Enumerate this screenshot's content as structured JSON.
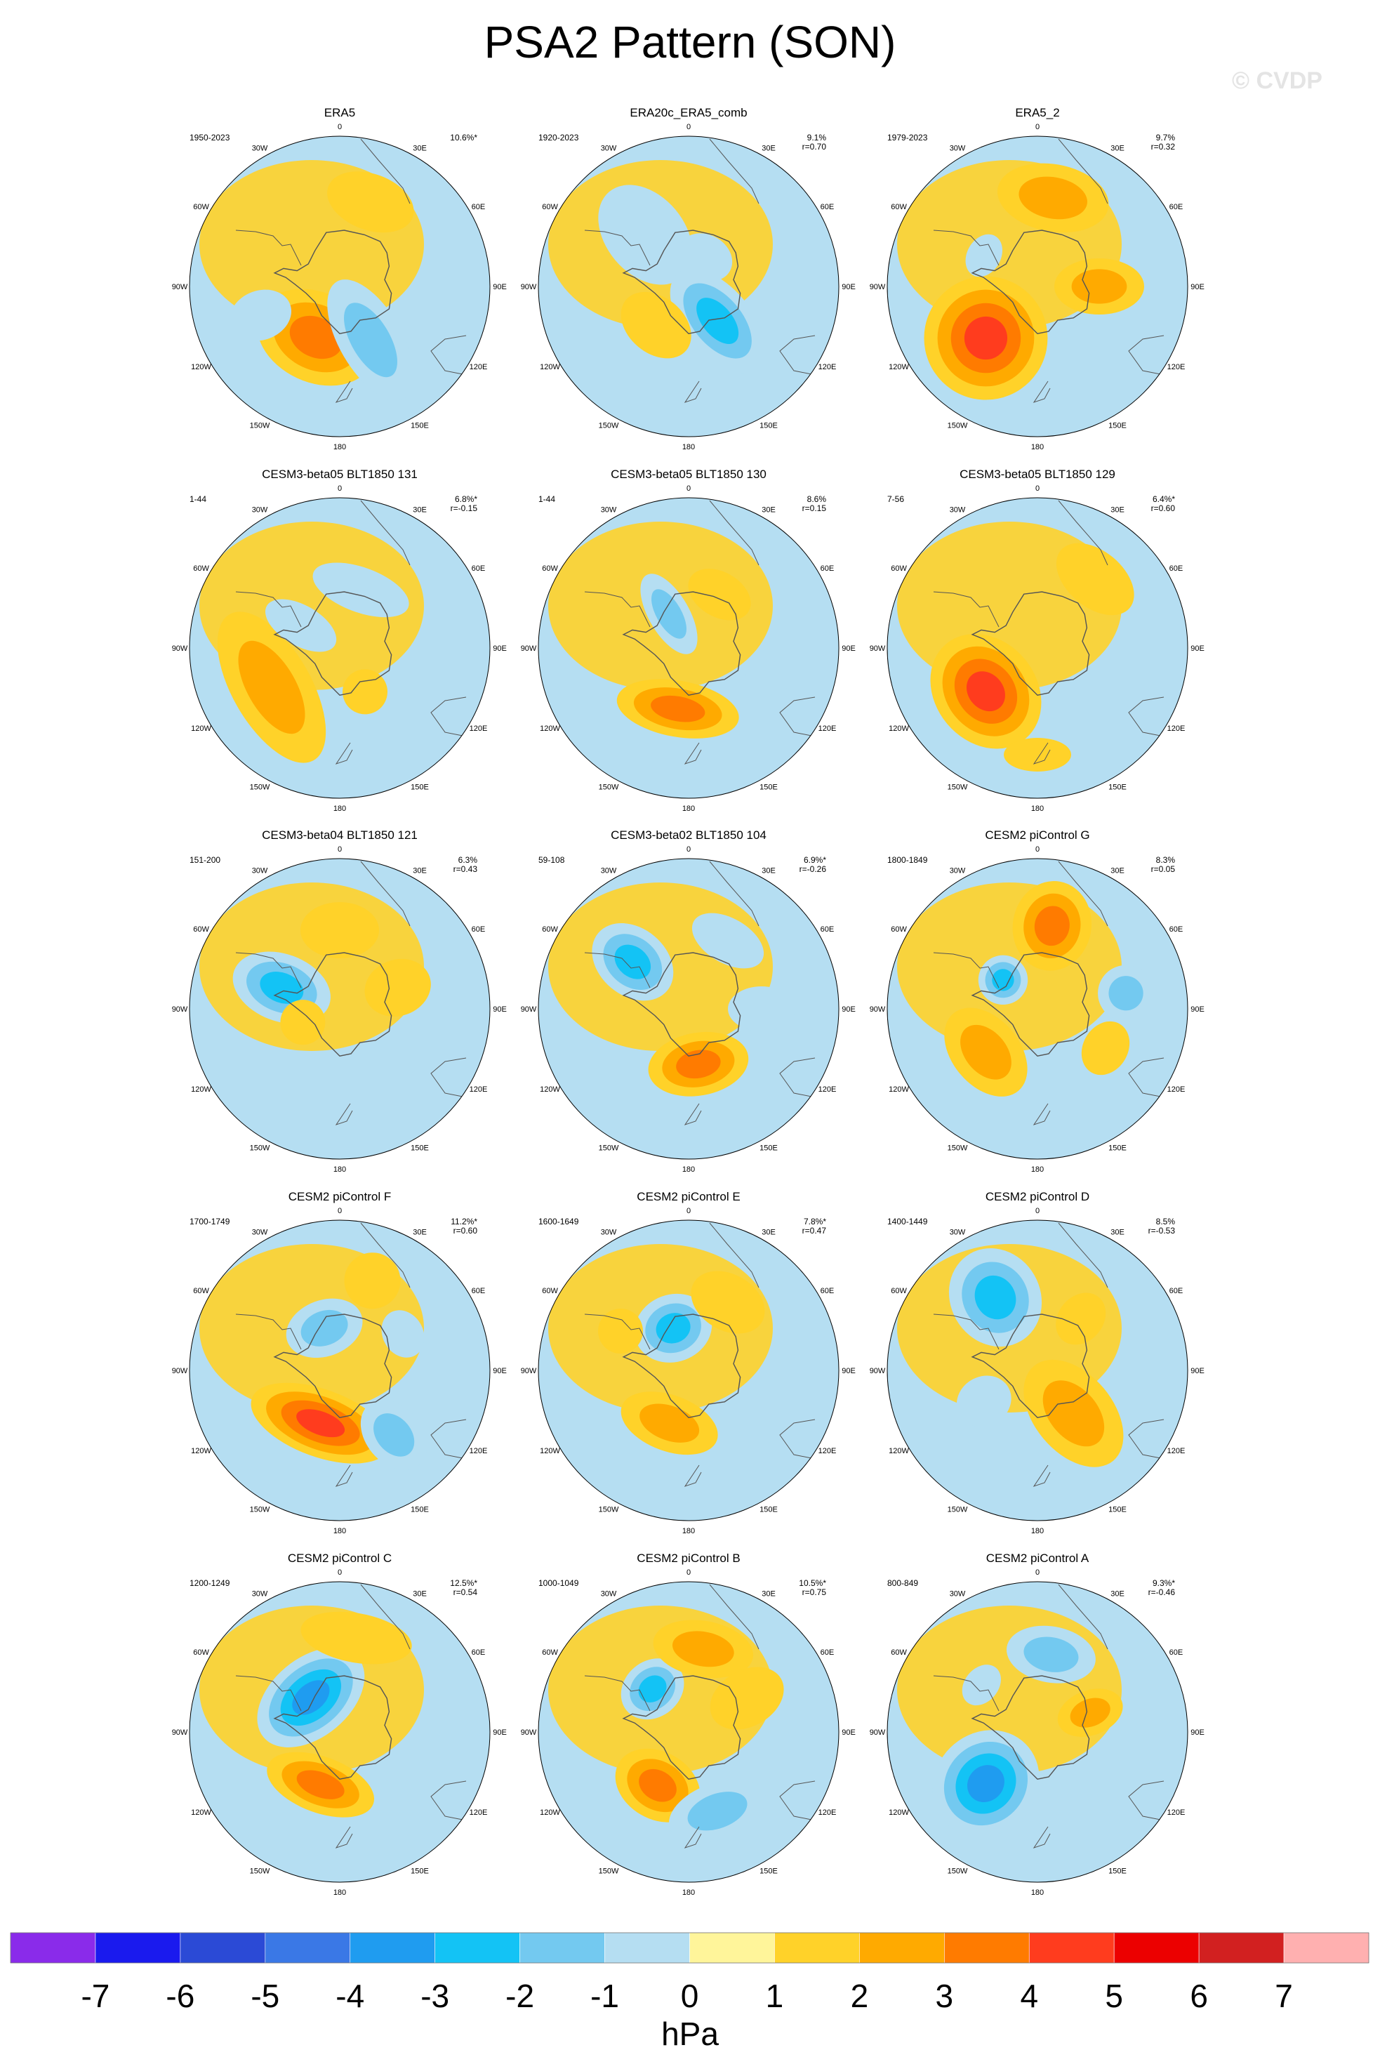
{
  "title": "PSA2 Pattern (SON)",
  "watermark": "© CVDP",
  "longitude_labels": [
    "0",
    "30E",
    "60E",
    "90E",
    "120E",
    "150E",
    "180",
    "150W",
    "120W",
    "90W",
    "60W",
    "30W"
  ],
  "panels": [
    {
      "title": "ERA5",
      "period": "1950-2023",
      "pct": "10.6%*",
      "r": ""
    },
    {
      "title": "ERA20c_ERA5_comb",
      "period": "1920-2023",
      "pct": "9.1%",
      "r": "r=0.70"
    },
    {
      "title": "ERA5_2",
      "period": "1979-2023",
      "pct": "9.7%",
      "r": "r=0.32"
    },
    {
      "title": "CESM3-beta05 BLT1850 131",
      "period": "1-44",
      "pct": "6.8%*",
      "r": "r=-0.15"
    },
    {
      "title": "CESM3-beta05 BLT1850 130",
      "period": "1-44",
      "pct": "8.6%",
      "r": "r=0.15"
    },
    {
      "title": "CESM3-beta05 BLT1850 129",
      "period": "7-56",
      "pct": "6.4%*",
      "r": "r=0.60"
    },
    {
      "title": "CESM3-beta04 BLT1850 121",
      "period": "151-200",
      "pct": "6.3%",
      "r": "r=0.43"
    },
    {
      "title": "CESM3-beta02 BLT1850 104",
      "period": "59-108",
      "pct": "6.9%*",
      "r": "r=-0.26"
    },
    {
      "title": "CESM2 piControl G",
      "period": "1800-1849",
      "pct": "8.3%",
      "r": "r=0.05"
    },
    {
      "title": "CESM2 piControl F",
      "period": "1700-1749",
      "pct": "11.2%*",
      "r": "r=0.60"
    },
    {
      "title": "CESM2 piControl E",
      "period": "1600-1649",
      "pct": "7.8%*",
      "r": "r=0.47"
    },
    {
      "title": "CESM2 piControl D",
      "period": "1400-1449",
      "pct": "8.5%",
      "r": "r=-0.53"
    },
    {
      "title": "CESM2 piControl C",
      "period": "1200-1249",
      "pct": "12.5%*",
      "r": "r=0.54"
    },
    {
      "title": "CESM2 piControl B",
      "period": "1000-1049",
      "pct": "10.5%*",
      "r": "r=0.75"
    },
    {
      "title": "CESM2 piControl A",
      "period": "800-849",
      "pct": "9.3%*",
      "r": "r=-0.46"
    }
  ],
  "colorbar": {
    "colors": [
      "#8a2bea",
      "#1a1aee",
      "#2b4ad6",
      "#3a78e6",
      "#1f9cf0",
      "#13c3f5",
      "#73c9f0",
      "#b5def2",
      "#fff59a",
      "#ffd229",
      "#ffaa00",
      "#ff7b00",
      "#ff3c1e",
      "#ec0000",
      "#d22020",
      "#ffb0b0"
    ],
    "ticks": [
      "-7",
      "-6",
      "-5",
      "-4",
      "-3",
      "-2",
      "-1",
      "0",
      "1",
      "2",
      "3",
      "4",
      "5",
      "6",
      "7"
    ],
    "unit": "hPa"
  },
  "anomaly_blobs": [
    [
      {
        "a": 20,
        "d": 80,
        "rx": 40,
        "ry": 25,
        "v": 1
      },
      {
        "a": 205,
        "d": 50,
        "rx": 55,
        "ry": 40,
        "v": 3
      },
      {
        "a": 250,
        "d": 75,
        "rx": 22,
        "ry": 28,
        "v": -1
      },
      {
        "a": 150,
        "d": 55,
        "rx": 28,
        "ry": 60,
        "v": -2
      }
    ],
    [
      {
        "a": 320,
        "d": 60,
        "rx": 35,
        "ry": 50,
        "v": -1
      },
      {
        "a": 140,
        "d": 40,
        "rx": 30,
        "ry": 55,
        "v": -3
      },
      {
        "a": 220,
        "d": 45,
        "rx": 35,
        "ry": 25,
        "v": 1
      },
      {
        "a": 30,
        "d": 30,
        "rx": 25,
        "ry": 20,
        "v": -1
      }
    ],
    [
      {
        "a": 10,
        "d": 80,
        "rx": 50,
        "ry": 30,
        "v": 2
      },
      {
        "a": 225,
        "d": 65,
        "rx": 55,
        "ry": 55,
        "v": 4
      },
      {
        "a": 90,
        "d": 55,
        "rx": 25,
        "ry": 40,
        "v": 2
      },
      {
        "a": 300,
        "d": 55,
        "rx": 20,
        "ry": 15,
        "v": -1
      }
    ],
    [
      {
        "a": 20,
        "d": 55,
        "rx": 45,
        "ry": 20,
        "v": -1
      },
      {
        "a": 240,
        "d": 70,
        "rx": 75,
        "ry": 35,
        "v": 2
      },
      {
        "a": 300,
        "d": 40,
        "rx": 18,
        "ry": 35,
        "v": -1
      },
      {
        "a": 150,
        "d": 45,
        "rx": 20,
        "ry": 20,
        "v": 1
      }
    ],
    [
      {
        "a": 330,
        "d": 35,
        "rx": 18,
        "ry": 40,
        "v": -2
      },
      {
        "a": 190,
        "d": 55,
        "rx": 55,
        "ry": 25,
        "v": 3
      },
      {
        "a": 30,
        "d": 55,
        "rx": 30,
        "ry": 20,
        "v": 1
      },
      {
        "a": 110,
        "d": 75,
        "rx": 15,
        "ry": 20,
        "v": -1
      }
    ],
    [
      {
        "a": 230,
        "d": 60,
        "rx": 55,
        "ry": 45,
        "v": 4
      },
      {
        "a": 40,
        "d": 80,
        "rx": 40,
        "ry": 25,
        "v": 1
      },
      {
        "a": 180,
        "d": 95,
        "rx": 30,
        "ry": 15,
        "v": 1
      }
    ],
    [
      {
        "a": 290,
        "d": 55,
        "rx": 30,
        "ry": 45,
        "v": -3
      },
      {
        "a": 0,
        "d": 70,
        "rx": 35,
        "ry": 25,
        "v": 1
      },
      {
        "a": 70,
        "d": 55,
        "rx": 25,
        "ry": 30,
        "v": 1
      },
      {
        "a": 250,
        "d": 35,
        "rx": 20,
        "ry": 20,
        "v": 1
      }
    ],
    [
      {
        "a": 310,
        "d": 65,
        "rx": 30,
        "ry": 40,
        "v": -3
      },
      {
        "a": 170,
        "d": 50,
        "rx": 45,
        "ry": 28,
        "v": 3
      },
      {
        "a": 30,
        "d": 70,
        "rx": 35,
        "ry": 20,
        "v": -1
      },
      {
        "a": 90,
        "d": 65,
        "rx": 20,
        "ry": 30,
        "v": -1
      }
    ],
    [
      {
        "a": 10,
        "d": 75,
        "rx": 35,
        "ry": 40,
        "v": 3
      },
      {
        "a": 80,
        "d": 80,
        "rx": 25,
        "ry": 25,
        "v": -2
      },
      {
        "a": 230,
        "d": 60,
        "rx": 45,
        "ry": 30,
        "v": 2
      },
      {
        "a": 310,
        "d": 40,
        "rx": 22,
        "ry": 22,
        "v": -3
      },
      {
        "a": 120,
        "d": 70,
        "rx": 25,
        "ry": 20,
        "v": 1
      }
    ],
    [
      {
        "a": 340,
        "d": 40,
        "rx": 35,
        "ry": 25,
        "v": -2
      },
      {
        "a": 200,
        "d": 50,
        "rx": 65,
        "ry": 30,
        "v": 4
      },
      {
        "a": 20,
        "d": 85,
        "rx": 25,
        "ry": 25,
        "v": 1
      },
      {
        "a": 140,
        "d": 75,
        "rx": 25,
        "ry": 35,
        "v": -2
      },
      {
        "a": 60,
        "d": 65,
        "rx": 22,
        "ry": 18,
        "v": -1
      }
    ],
    [
      {
        "a": 340,
        "d": 40,
        "rx": 35,
        "ry": 30,
        "v": -3
      },
      {
        "a": 200,
        "d": 50,
        "rx": 45,
        "ry": 25,
        "v": 2
      },
      {
        "a": 30,
        "d": 70,
        "rx": 35,
        "ry": 25,
        "v": 1
      },
      {
        "a": 300,
        "d": 70,
        "rx": 20,
        "ry": 20,
        "v": 1
      }
    ],
    [
      {
        "a": 330,
        "d": 75,
        "rx": 40,
        "ry": 45,
        "v": -3
      },
      {
        "a": 140,
        "d": 50,
        "rx": 35,
        "ry": 55,
        "v": 2
      },
      {
        "a": 40,
        "d": 60,
        "rx": 20,
        "ry": 25,
        "v": 1
      },
      {
        "a": 240,
        "d": 55,
        "rx": 22,
        "ry": 25,
        "v": -1
      }
    ],
    [
      {
        "a": 320,
        "d": 40,
        "rx": 55,
        "ry": 35,
        "v": -4
      },
      {
        "a": 200,
        "d": 50,
        "rx": 50,
        "ry": 25,
        "v": 3
      },
      {
        "a": 10,
        "d": 85,
        "rx": 50,
        "ry": 22,
        "v": 1
      }
    ],
    [
      {
        "a": 320,
        "d": 50,
        "rx": 30,
        "ry": 25,
        "v": -3
      },
      {
        "a": 210,
        "d": 55,
        "rx": 40,
        "ry": 30,
        "v": 3
      },
      {
        "a": 10,
        "d": 75,
        "rx": 45,
        "ry": 25,
        "v": 2
      },
      {
        "a": 160,
        "d": 75,
        "rx": 45,
        "ry": 25,
        "v": -2
      },
      {
        "a": 60,
        "d": 60,
        "rx": 25,
        "ry": 35,
        "v": 1
      }
    ],
    [
      {
        "a": 225,
        "d": 65,
        "rx": 45,
        "ry": 50,
        "v": -4
      },
      {
        "a": 10,
        "d": 70,
        "rx": 40,
        "ry": 25,
        "v": -2
      },
      {
        "a": 70,
        "d": 50,
        "rx": 20,
        "ry": 30,
        "v": 2
      },
      {
        "a": 310,
        "d": 65,
        "rx": 20,
        "ry": 15,
        "v": -1
      }
    ]
  ]
}
